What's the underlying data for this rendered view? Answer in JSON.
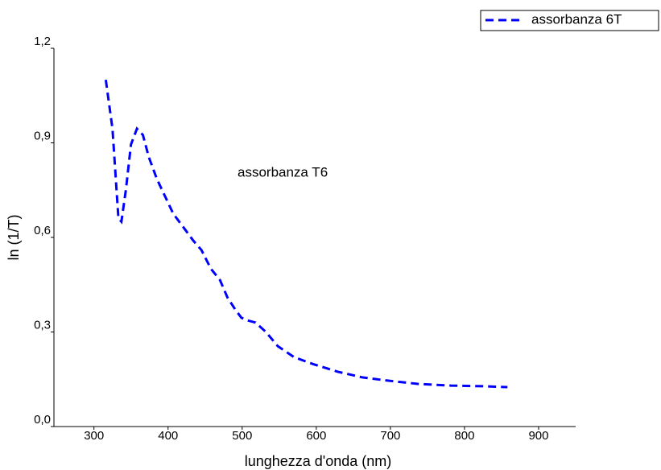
{
  "chart_data": {
    "type": "line",
    "x_label": "lunghezza d'onda (nm)",
    "y_label": "ln (1/T)",
    "annotation": "assorbanza T6",
    "x": [
      316,
      325,
      333,
      337,
      343,
      350,
      358,
      366,
      374,
      385,
      396,
      407,
      423,
      434,
      445,
      458,
      470,
      480,
      491,
      499,
      507,
      518,
      532,
      548,
      570,
      597,
      629,
      662,
      695,
      738,
      782,
      825,
      858
    ],
    "series": [
      {
        "name": "assorbanza 6T",
        "color": "#0000ff",
        "dashed": true,
        "values": [
          1.1,
          0.945,
          0.66,
          0.65,
          0.75,
          0.895,
          0.945,
          0.925,
          0.855,
          0.785,
          0.73,
          0.675,
          0.625,
          0.59,
          0.56,
          0.5,
          0.465,
          0.41,
          0.37,
          0.345,
          0.337,
          0.33,
          0.3,
          0.255,
          0.22,
          0.197,
          0.174,
          0.156,
          0.146,
          0.135,
          0.13,
          0.128,
          0.125
        ]
      }
    ],
    "xlim": [
      246,
      950
    ],
    "xticks": [
      300,
      400,
      500,
      600,
      700,
      800,
      900
    ],
    "ylim": [
      0,
      1.2
    ],
    "yticks": [
      {
        "value": 0,
        "label": "0,0"
      },
      {
        "value": 0.3,
        "label": "0,3"
      },
      {
        "value": 0.6,
        "label": "0,6"
      },
      {
        "value": 0.9,
        "label": "0,9"
      },
      {
        "value": 1.2,
        "label": "1,2"
      }
    ],
    "legend": "top-right"
  }
}
